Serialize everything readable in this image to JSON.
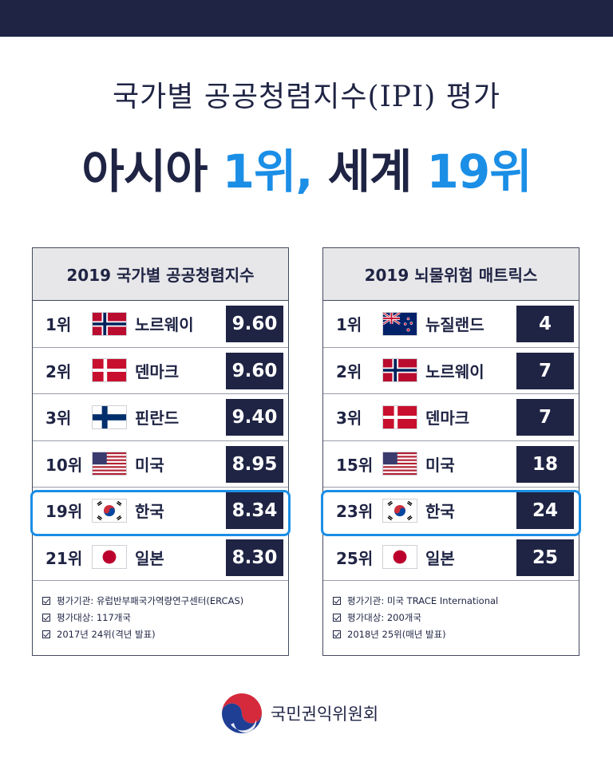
{
  "title": "국가별 공공청렴지수(IPI) 평가",
  "headline": {
    "part1": "아시아 ",
    "part2": "1위,",
    "part3": " 세계 ",
    "part4": "19위"
  },
  "chart_data": [
    {
      "type": "table",
      "title": "2019 국가별 공공청렴지수",
      "columns": [
        "rank",
        "country",
        "score"
      ],
      "rows": [
        {
          "rank": "1위",
          "country": "노르웨이",
          "flag": "norway-flag-icon",
          "value": "9.60"
        },
        {
          "rank": "2위",
          "country": "덴마크",
          "flag": "denmark-flag-icon",
          "value": "9.60"
        },
        {
          "rank": "3위",
          "country": "핀란드",
          "flag": "finland-flag-icon",
          "value": "9.40"
        },
        {
          "rank": "10위",
          "country": "미국",
          "flag": "usa-flag-icon",
          "value": "8.95"
        },
        {
          "rank": "19위",
          "country": "한국",
          "flag": "korea-flag-icon",
          "value": "8.34",
          "highlighted": true
        },
        {
          "rank": "21위",
          "country": "일본",
          "flag": "japan-flag-icon",
          "value": "8.30"
        }
      ],
      "notes": [
        "평가기관: 유럽반부패국가역량연구센터(ERCAS)",
        "평가대상: 117개국",
        "2017년 24위(격년 발표)"
      ]
    },
    {
      "type": "table",
      "title": "2019 뇌물위험 매트릭스",
      "columns": [
        "rank",
        "country",
        "score"
      ],
      "rows": [
        {
          "rank": "1위",
          "country": "뉴질랜드",
          "flag": "new-zealand-flag-icon",
          "value": "4"
        },
        {
          "rank": "2위",
          "country": "노르웨이",
          "flag": "norway-flag-icon",
          "value": "7"
        },
        {
          "rank": "3위",
          "country": "덴마크",
          "flag": "denmark-flag-icon",
          "value": "7"
        },
        {
          "rank": "15위",
          "country": "미국",
          "flag": "usa-flag-icon",
          "value": "18"
        },
        {
          "rank": "23위",
          "country": "한국",
          "flag": "korea-flag-icon",
          "value": "24",
          "highlighted": true
        },
        {
          "rank": "25위",
          "country": "일본",
          "flag": "japan-flag-icon",
          "value": "25"
        }
      ],
      "notes": [
        "평가기관: 미국 TRACE International",
        "평가대상: 200개국",
        "2018년 25위(매년 발표)"
      ]
    }
  ],
  "colors": {
    "navy": "#1f2444",
    "accent_blue": "#1b8ee6",
    "header_gray": "#e7e7e9"
  },
  "footer": {
    "organization": "국민권익위원회",
    "logo": "government-logo-icon"
  }
}
